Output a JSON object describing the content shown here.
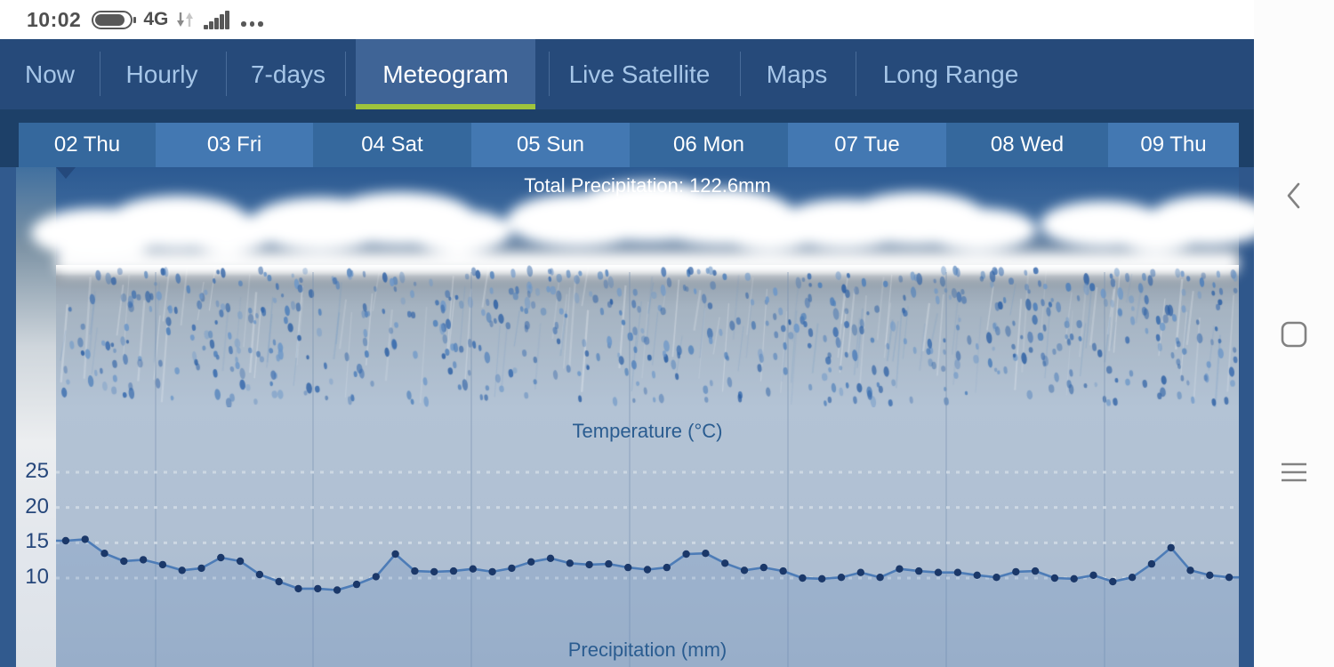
{
  "status_bar": {
    "time": "10:02",
    "network": "4G",
    "icons": [
      "battery-icon",
      "data-arrows-icon",
      "signal-bars-icon",
      "more-dots-icon"
    ]
  },
  "nav": {
    "items": [
      {
        "label": "Now",
        "selected": false
      },
      {
        "label": "Hourly",
        "selected": false
      },
      {
        "label": "7-days",
        "selected": false
      },
      {
        "label": "Meteogram",
        "selected": true
      },
      {
        "label": "Live Satellite",
        "selected": false
      },
      {
        "label": "Maps",
        "selected": false
      },
      {
        "label": "Long Range",
        "selected": false
      }
    ],
    "accent_color": "#9fc43c"
  },
  "day_tabs": [
    {
      "label": "02 Thu"
    },
    {
      "label": "03 Fri"
    },
    {
      "label": "04 Sat"
    },
    {
      "label": "05 Sun"
    },
    {
      "label": "06 Mon"
    },
    {
      "label": "07 Tue"
    },
    {
      "label": "08 Wed"
    },
    {
      "label": "09 Thu"
    }
  ],
  "chart": {
    "title": "Total Precipitation: 122.6mm",
    "temperature_label": "Temperature (°C)",
    "precipitation_label": "Precipitation (mm)",
    "y_ticks": [
      25,
      20,
      15,
      10
    ]
  },
  "chart_data": {
    "type": "line",
    "title": "Total Precipitation: 122.6mm",
    "total_precipitation_mm": 122.6,
    "panel_labels": [
      "Temperature (°C)",
      "Precipitation (mm)"
    ],
    "categories": [
      "02 Thu",
      "03 Fri",
      "04 Sat",
      "05 Sun",
      "06 Mon",
      "07 Tue",
      "08 Wed",
      "09 Thu"
    ],
    "points_per_day": 8,
    "y_ticks": [
      25,
      20,
      15,
      10
    ],
    "ylim": [
      7,
      27
    ],
    "grid": "dotted-horizontal, day-boundary-vertical",
    "series": [
      {
        "name": "Temperature (°C)",
        "values": [
          15.3,
          15.5,
          13.5,
          12.4,
          12.6,
          11.9,
          11.1,
          11.4,
          12.9,
          12.4,
          10.5,
          9.5,
          8.5,
          8.5,
          8.3,
          9.1,
          10.2,
          13.4,
          11.0,
          10.9,
          11.0,
          11.3,
          10.9,
          11.4,
          12.3,
          12.8,
          12.1,
          11.9,
          12.0,
          11.5,
          11.2,
          11.5,
          13.4,
          13.5,
          12.1,
          11.1,
          11.5,
          11.0,
          10.0,
          9.9,
          10.1,
          10.8,
          10.1,
          11.3,
          11.0,
          10.8,
          10.8,
          10.4,
          10.1,
          10.9,
          11.0,
          10.0,
          9.9,
          10.4,
          9.5,
          10.1,
          12.0,
          14.3,
          11.1,
          10.4,
          10.1
        ]
      }
    ]
  },
  "android_nav": {
    "icons": [
      "back-icon",
      "home-square-icon",
      "menu-icon"
    ]
  },
  "colors": {
    "nav_bg": "#264a7a",
    "nav_text": "#a6c6e8",
    "selected_tab_bg": "#3f6496",
    "accent_green": "#9fc43c",
    "day_tab_dark": "#35689d",
    "day_tab_light": "#4378b2",
    "temp_line": "#4d7cb7",
    "temp_dot": "#1b3869",
    "tick_text": "#26477b"
  }
}
